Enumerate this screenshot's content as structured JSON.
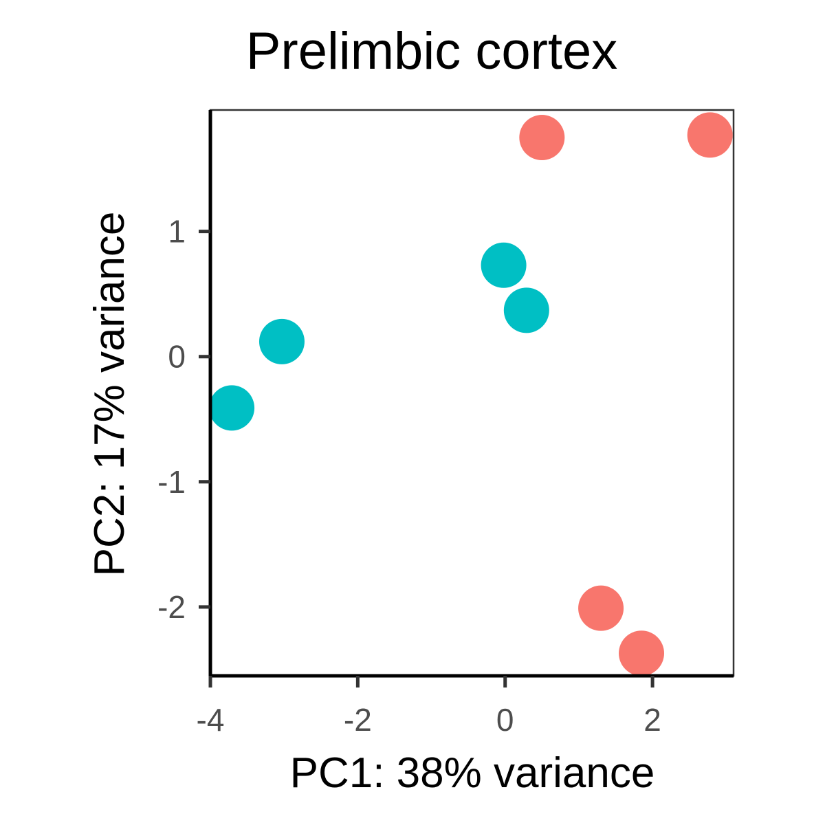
{
  "chart_data": {
    "type": "scatter",
    "title": "Prelimbic cortex",
    "xlabel": "PC1: 38% variance",
    "ylabel": "PC2: 17% variance",
    "xlim": [
      -4.0,
      3.1
    ],
    "ylim": [
      -2.55,
      1.97
    ],
    "xticks": [
      -4,
      -2,
      0,
      2
    ],
    "xtick_labels": [
      "-4",
      "-2",
      "0",
      "2"
    ],
    "yticks": [
      -2,
      -1,
      0,
      1
    ],
    "ytick_labels": [
      "-2",
      "-1",
      "0",
      "1"
    ],
    "grid": false,
    "legend": "none",
    "series": [
      {
        "color": "#F8766D",
        "points": [
          {
            "x": 0.5,
            "y": 1.75
          },
          {
            "x": 2.78,
            "y": 1.77
          },
          {
            "x": 1.3,
            "y": -2.01
          },
          {
            "x": 1.85,
            "y": -2.37
          }
        ]
      },
      {
        "color": "#00BFC4",
        "points": [
          {
            "x": -0.02,
            "y": 0.73
          },
          {
            "x": 0.29,
            "y": 0.37
          },
          {
            "x": -3.03,
            "y": 0.12
          },
          {
            "x": -3.71,
            "y": -0.41
          }
        ]
      }
    ]
  }
}
